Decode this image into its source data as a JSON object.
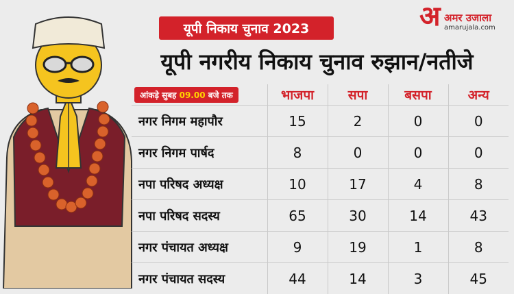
{
  "badge": "यूपी निकाय चुनाव 2023",
  "logo": {
    "mark": "अ",
    "name": "अमर उजाला",
    "url": "amarujala.com"
  },
  "headline": "यूपी नगरीय निकाय चुनाव रुझान/नतीजे",
  "note": {
    "prefix": "आंकड़े सुबह",
    "time": "09.00",
    "suffix": "बजे तक"
  },
  "columns": [
    "भाजपा",
    "सपा",
    "बसपा",
    "अन्य"
  ],
  "rows": [
    {
      "label": "नगर निगम महापौर",
      "values": [
        "15",
        "2",
        "0",
        "0"
      ]
    },
    {
      "label": "नगर निगम पार्षद",
      "values": [
        "8",
        "0",
        "0",
        "0"
      ]
    },
    {
      "label": "नपा परिषद अध्यक्ष",
      "values": [
        "10",
        "17",
        "4",
        "8"
      ]
    },
    {
      "label": "नपा परिषद सदस्य",
      "values": [
        "65",
        "30",
        "14",
        "43"
      ]
    },
    {
      "label": "नगर पंचायत अध्यक्ष",
      "values": [
        "9",
        "19",
        "1",
        "8"
      ]
    },
    {
      "label": "नगर पंचायत सदस्य",
      "values": [
        "44",
        "14",
        "3",
        "45"
      ]
    }
  ],
  "colors": {
    "accent": "#d3222a",
    "time": "#ffd400",
    "skin": "#f5c41f",
    "vest": "#7a1e2a",
    "garland": "#d9622b"
  }
}
